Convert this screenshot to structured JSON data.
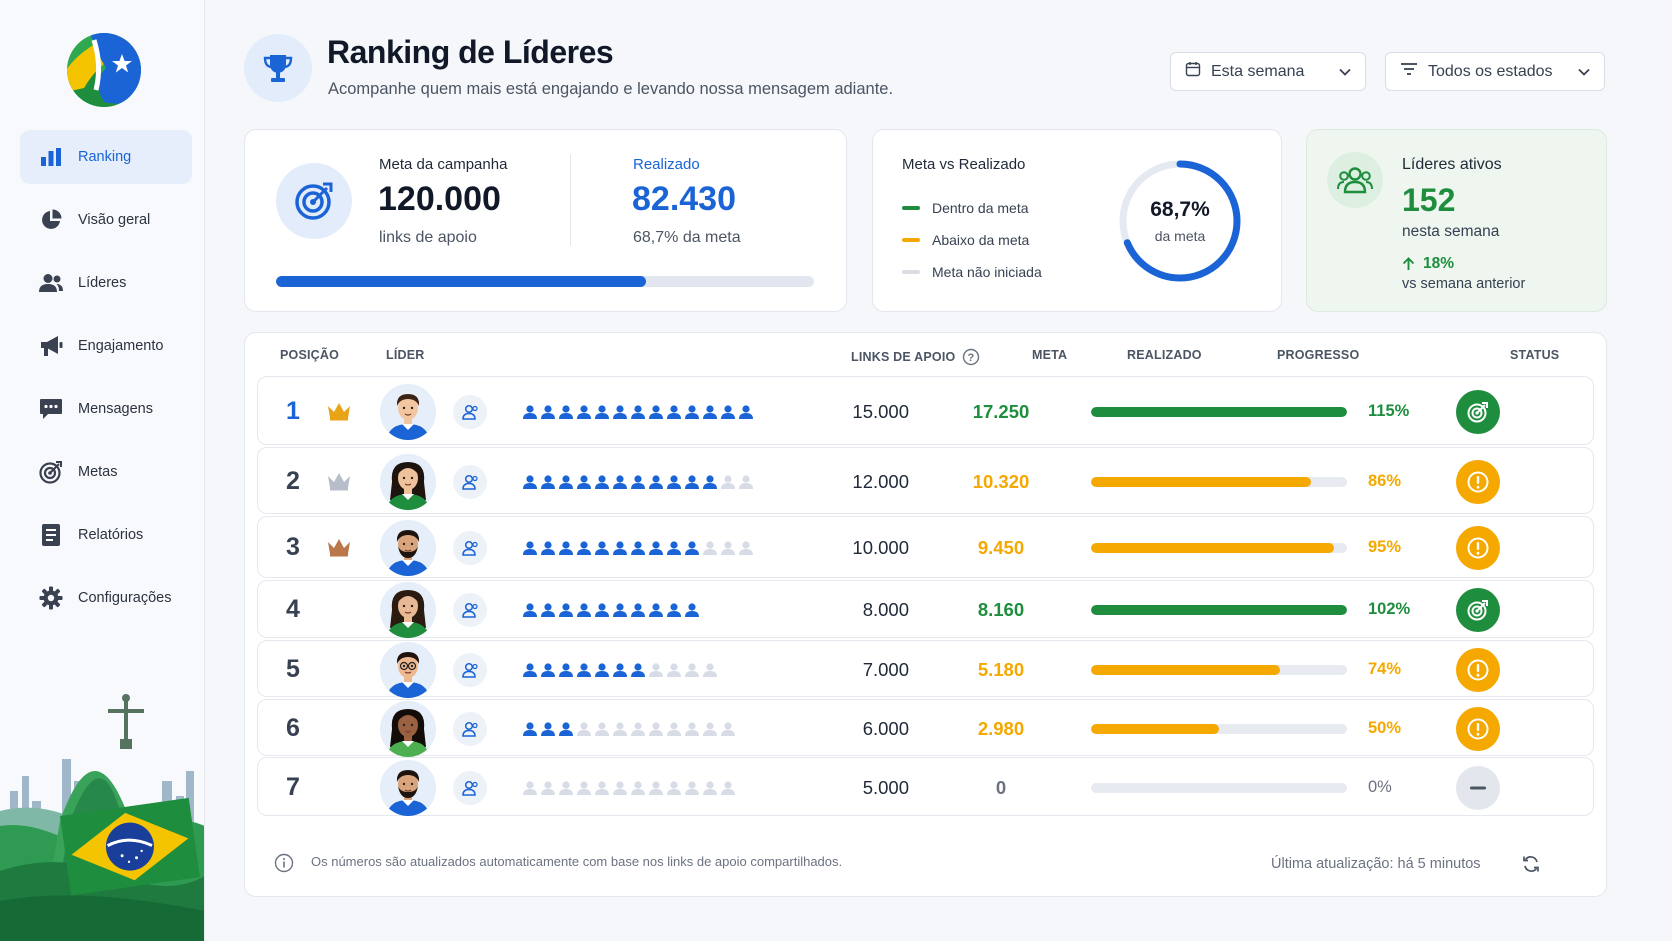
{
  "sidebar": {
    "items": [
      {
        "label": "Ranking",
        "icon": "bar-chart-icon"
      },
      {
        "label": "Visão geral",
        "icon": "pie-chart-icon"
      },
      {
        "label": "Líderes",
        "icon": "users-icon"
      },
      {
        "label": "Engajamento",
        "icon": "megaphone-icon"
      },
      {
        "label": "Mensagens",
        "icon": "chat-icon"
      },
      {
        "label": "Metas",
        "icon": "target-icon"
      },
      {
        "label": "Relatórios",
        "icon": "report-icon"
      },
      {
        "label": "Configurações",
        "icon": "gear-icon"
      }
    ],
    "active_index": 0
  },
  "header": {
    "title": "Ranking de Líderes",
    "subtitle": "Acompanhe quem mais está engajando e levando nossa mensagem adiante.",
    "period_filter": "Esta semana",
    "state_filter": "Todos os estados"
  },
  "campaign": {
    "goal_label": "Meta da campanha",
    "goal_value": "120.000",
    "goal_unit": "links de apoio",
    "done_label": "Realizado",
    "done_value": "82.430",
    "done_pct": "68,7% da meta",
    "progress": 0.687
  },
  "goal_vs_done": {
    "title": "Meta vs Realizado",
    "legend": [
      {
        "label": "Dentro da meta",
        "color": "#1e8e3e"
      },
      {
        "label": "Abaixo da meta",
        "color": "#f5a800"
      },
      {
        "label": "Meta não iniciada",
        "color": "#d9dde4"
      }
    ],
    "donut_value": "68,7%",
    "donut_caption": "da meta",
    "donut_fraction": 0.687
  },
  "active_leaders": {
    "title": "Líderes ativos",
    "value": "152",
    "caption": "nesta semana",
    "change": "18%",
    "change_caption": "vs semana anterior"
  },
  "table": {
    "headers": {
      "position": "POSIÇÃO",
      "leader": "LÍDER",
      "links": "LINKS DE APOIO",
      "goal": "META",
      "done": "REALIZADO",
      "progress": "PROGRESSO",
      "status": "STATUS"
    },
    "rows": [
      {
        "pos": "1",
        "crown": "gold",
        "filled": 13,
        "total": 13,
        "goal": "15.000",
        "done": "17.250",
        "progress": 1.0,
        "pct": "115%",
        "status": "ok",
        "avatar": {
          "skin": "#f1c6a1",
          "hair": "#3b2416",
          "shirt": "#1a64d6",
          "long": false,
          "beard": false,
          "glasses": false
        }
      },
      {
        "pos": "2",
        "crown": "silver",
        "filled": 11,
        "total": 13,
        "goal": "12.000",
        "done": "10.320",
        "progress": 0.86,
        "pct": "86%",
        "status": "warn",
        "avatar": {
          "skin": "#f0c29b",
          "hair": "#1e130d",
          "shirt": "#1e8e3e",
          "long": true,
          "beard": false,
          "glasses": false
        }
      },
      {
        "pos": "3",
        "crown": "bronze",
        "filled": 10,
        "total": 13,
        "goal": "10.000",
        "done": "9.450",
        "progress": 0.95,
        "pct": "95%",
        "status": "warn",
        "avatar": {
          "skin": "#d9a47c",
          "hair": "#1e130d",
          "shirt": "#1a64d6",
          "long": false,
          "beard": true,
          "glasses": false
        }
      },
      {
        "pos": "4",
        "crown": "none",
        "filled": 10,
        "total": 10,
        "goal": "8.000",
        "done": "8.160",
        "progress": 1.0,
        "pct": "102%",
        "status": "ok",
        "avatar": {
          "skin": "#e9b894",
          "hair": "#2a1a10",
          "shirt": "#1e8e3e",
          "long": true,
          "beard": false,
          "glasses": false
        }
      },
      {
        "pos": "5",
        "crown": "none",
        "filled": 7,
        "total": 11,
        "goal": "7.000",
        "done": "5.180",
        "progress": 0.74,
        "pct": "74%",
        "status": "warn",
        "avatar": {
          "skin": "#eeb990",
          "hair": "#1e130d",
          "shirt": "#1a64d6",
          "long": false,
          "beard": false,
          "glasses": true
        }
      },
      {
        "pos": "6",
        "crown": "none",
        "filled": 3,
        "total": 12,
        "goal": "6.000",
        "done": "2.980",
        "progress": 0.5,
        "pct": "50%",
        "status": "warn",
        "avatar": {
          "skin": "#9a6243",
          "hair": "#140c08",
          "shirt": "#4caf50",
          "long": true,
          "beard": false,
          "glasses": false
        }
      },
      {
        "pos": "7",
        "crown": "none",
        "filled": 0,
        "total": 12,
        "goal": "5.000",
        "done": "0",
        "progress": 0,
        "pct": "0%",
        "status": "none",
        "avatar": {
          "skin": "#d9a47c",
          "hair": "#1e130d",
          "shirt": "#1a64d6",
          "long": false,
          "beard": true,
          "glasses": false
        }
      }
    ]
  },
  "footer": {
    "note": "Os números são atualizados automaticamente com base nos links de apoio compartilhados.",
    "updated": "Última atualização: há 5 minutos"
  },
  "colors": {
    "accent": "#1a64d6",
    "ok": "#1e8e3e",
    "warn": "#f5a800",
    "none": "#e3e6ec",
    "gold": "#e8a317",
    "silver": "#b8bec9",
    "bronze": "#b9774a"
  }
}
